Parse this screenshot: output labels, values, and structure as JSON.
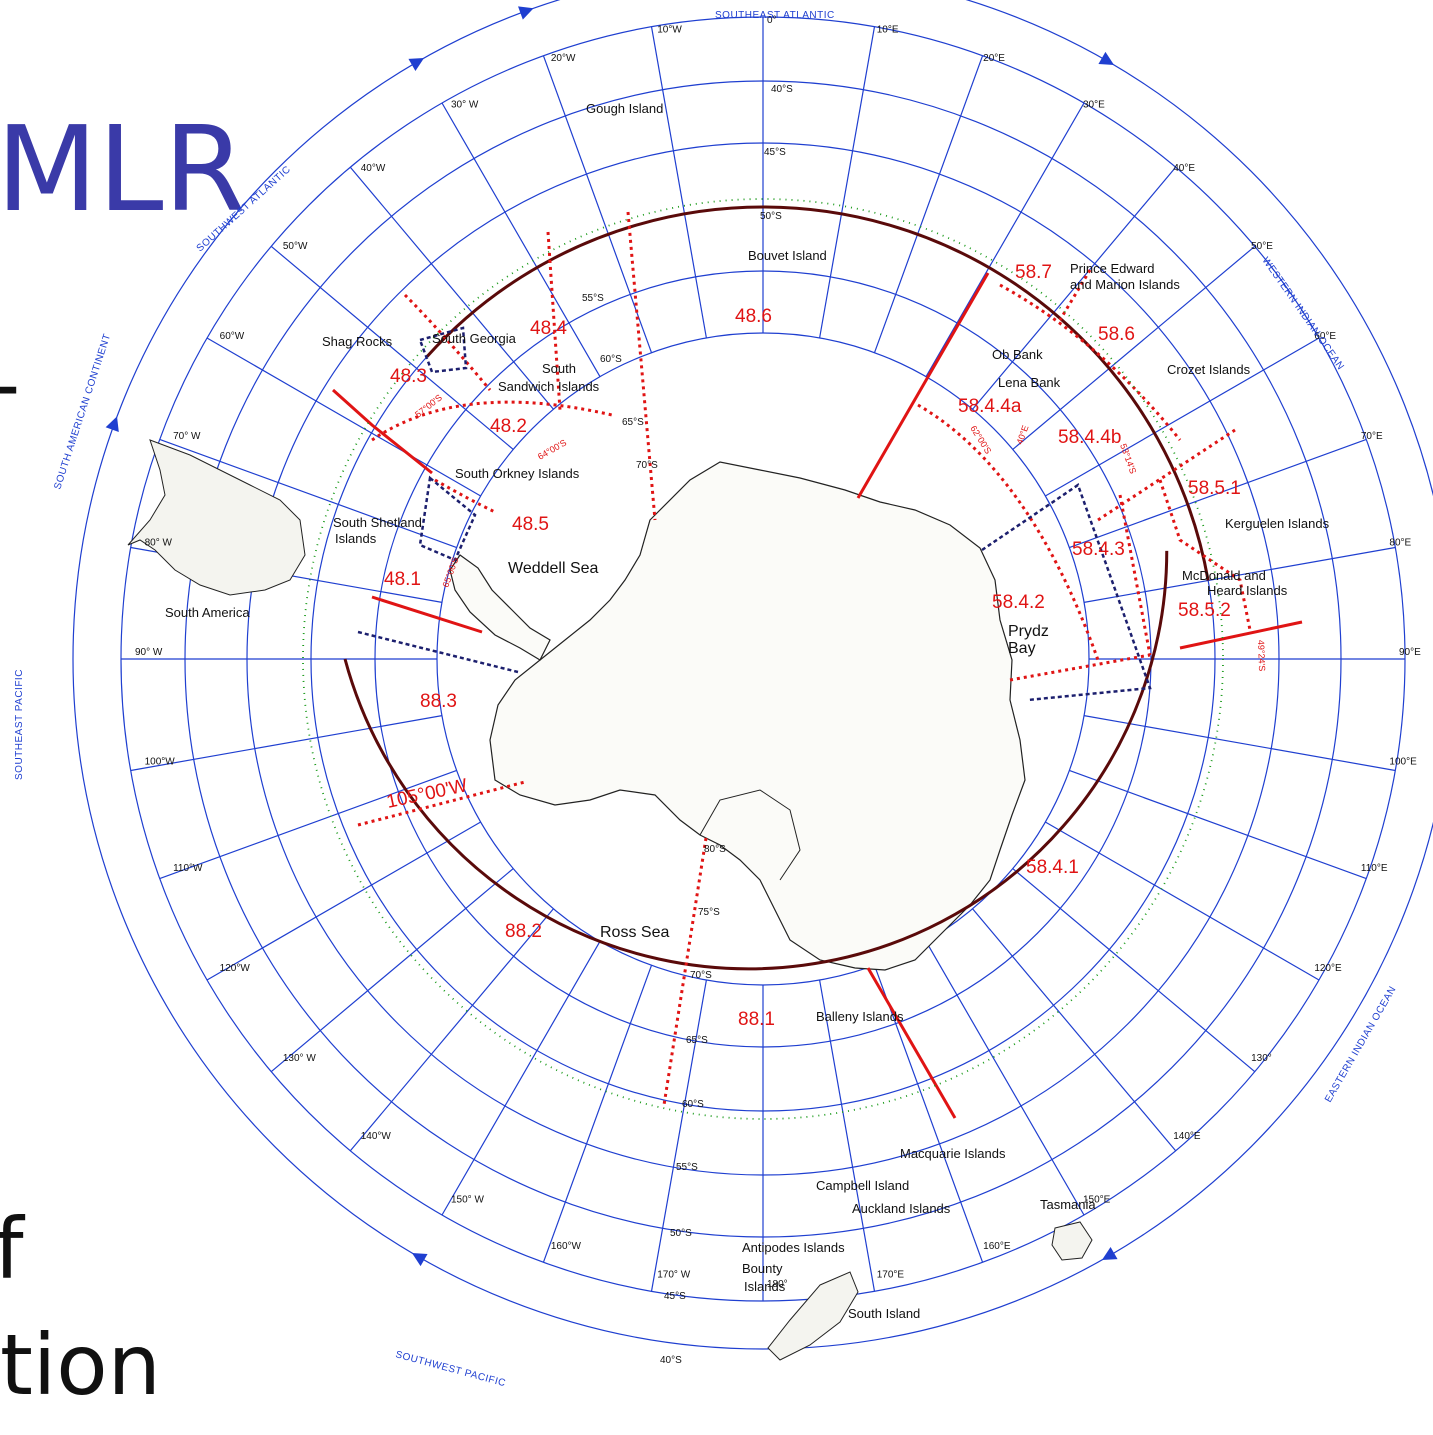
{
  "slide": {
    "title_fragment": "MLR",
    "bullet_fragment_1": "-",
    "bullet_fragment_2": "f",
    "bullet_fragment_3": "tion"
  },
  "colors": {
    "ocean_sector": "#1f3fd0",
    "area_boundary": "#e01414",
    "convention_line": "#1a1a1a",
    "front_line": "#1a9a1a",
    "excluded_zone": "#1c1f6e"
  },
  "map": {
    "ocean_sectors": [
      "SOUTHEAST ATLANTIC",
      "WESTERN INDIAN OCEAN",
      "EASTERN INDIAN OCEAN",
      "SOUTHWEST PACIFIC",
      "SOUTHEAST PACIFIC",
      "SOUTH AMERICAN CONTINENT",
      "SOUTHWEST ATLANTIC"
    ],
    "longitudes": [
      {
        "label": "0°",
        "lon": 0
      },
      {
        "label": "10°E",
        "lon": 10
      },
      {
        "label": "20°E",
        "lon": 20
      },
      {
        "label": "30°E",
        "lon": 30
      },
      {
        "label": "40°E",
        "lon": 40
      },
      {
        "label": "50°E",
        "lon": 50
      },
      {
        "label": "60°E",
        "lon": 60
      },
      {
        "label": "70°E",
        "lon": 70
      },
      {
        "label": "80°E",
        "lon": 80
      },
      {
        "label": "90°E",
        "lon": 90
      },
      {
        "label": "100°E",
        "lon": 100
      },
      {
        "label": "110°E",
        "lon": 110
      },
      {
        "label": "120°E",
        "lon": 120
      },
      {
        "label": "130°",
        "lon": 130
      },
      {
        "label": "140°E",
        "lon": 140
      },
      {
        "label": "150°E",
        "lon": 150
      },
      {
        "label": "160°E",
        "lon": 160
      },
      {
        "label": "170°E",
        "lon": 170
      },
      {
        "label": "180°",
        "lon": 180
      },
      {
        "label": "170° W",
        "lon": -170
      },
      {
        "label": "160°W",
        "lon": -160
      },
      {
        "label": "150° W",
        "lon": -150
      },
      {
        "label": "140°W",
        "lon": -140
      },
      {
        "label": "130° W",
        "lon": -130
      },
      {
        "label": "120°W",
        "lon": -120
      },
      {
        "label": "110°W",
        "lon": -110
      },
      {
        "label": "100°W",
        "lon": -100
      },
      {
        "label": "90° W",
        "lon": -90
      },
      {
        "label": "80° W",
        "lon": -80
      },
      {
        "label": "70° W",
        "lon": -70
      },
      {
        "label": "60°W",
        "lon": -60
      },
      {
        "label": "50°W",
        "lon": -50
      },
      {
        "label": "40°W",
        "lon": -40
      },
      {
        "label": "30° W",
        "lon": -30
      },
      {
        "label": "20°W",
        "lon": -20
      },
      {
        "label": "10°W",
        "lon": -10
      }
    ],
    "latitudes_top": [
      {
        "label": "40°S"
      },
      {
        "label": "45°S"
      },
      {
        "label": "50°S"
      }
    ],
    "latitudes_bottom": [
      {
        "label": "60°S"
      },
      {
        "label": "55°S"
      },
      {
        "label": "50°S"
      },
      {
        "label": "45°S"
      },
      {
        "label": "40°S"
      }
    ],
    "meridian_marks_180": [
      {
        "label": "80°S"
      },
      {
        "label": "75°S"
      },
      {
        "label": "70°S"
      },
      {
        "label": "65°S"
      }
    ],
    "meridian_marks_30w": [
      {
        "label": "55°S"
      },
      {
        "label": "60°S"
      },
      {
        "label": "65°S"
      },
      {
        "label": "70°S"
      }
    ],
    "statistical_areas": [
      "48.1",
      "48.2",
      "48.3",
      "48.4",
      "48.5",
      "48.6",
      "58.7",
      "58.6",
      "58.5.1",
      "58.5.2",
      "58.4.1",
      "58.4.2",
      "58.4.3",
      "58.4.4a",
      "58.4.4b",
      "88.1",
      "88.2",
      "88.3"
    ],
    "boundary_labels": [
      "105°00'W",
      "57°00'S",
      "64°00'S",
      "65°00'S",
      "62°00'S",
      "40°E",
      "53°14'S",
      "49°24'S"
    ],
    "places": [
      "Gough Island",
      "Bouvet Island",
      "Prince Edward",
      "and Marion Islands",
      "Ob Bank",
      "Lena Bank",
      "Crozet Islands",
      "Kerguelen Islands",
      "McDonald and",
      "Heard Islands",
      "Shag Rocks",
      "South Georgia",
      "South",
      "Sandwich Islands",
      "South Orkney Islands",
      "South Shetland",
      "Islands",
      "South America",
      "Macquarie Islands",
      "Campbell Island",
      "Auckland Islands",
      "Antipodes Islands",
      "Bounty",
      "Islands",
      "Tasmania",
      "South Island",
      "Balleny Islands"
    ],
    "seas": [
      "Weddell Sea",
      "Ross Sea",
      "Prydz",
      "Bay"
    ]
  }
}
